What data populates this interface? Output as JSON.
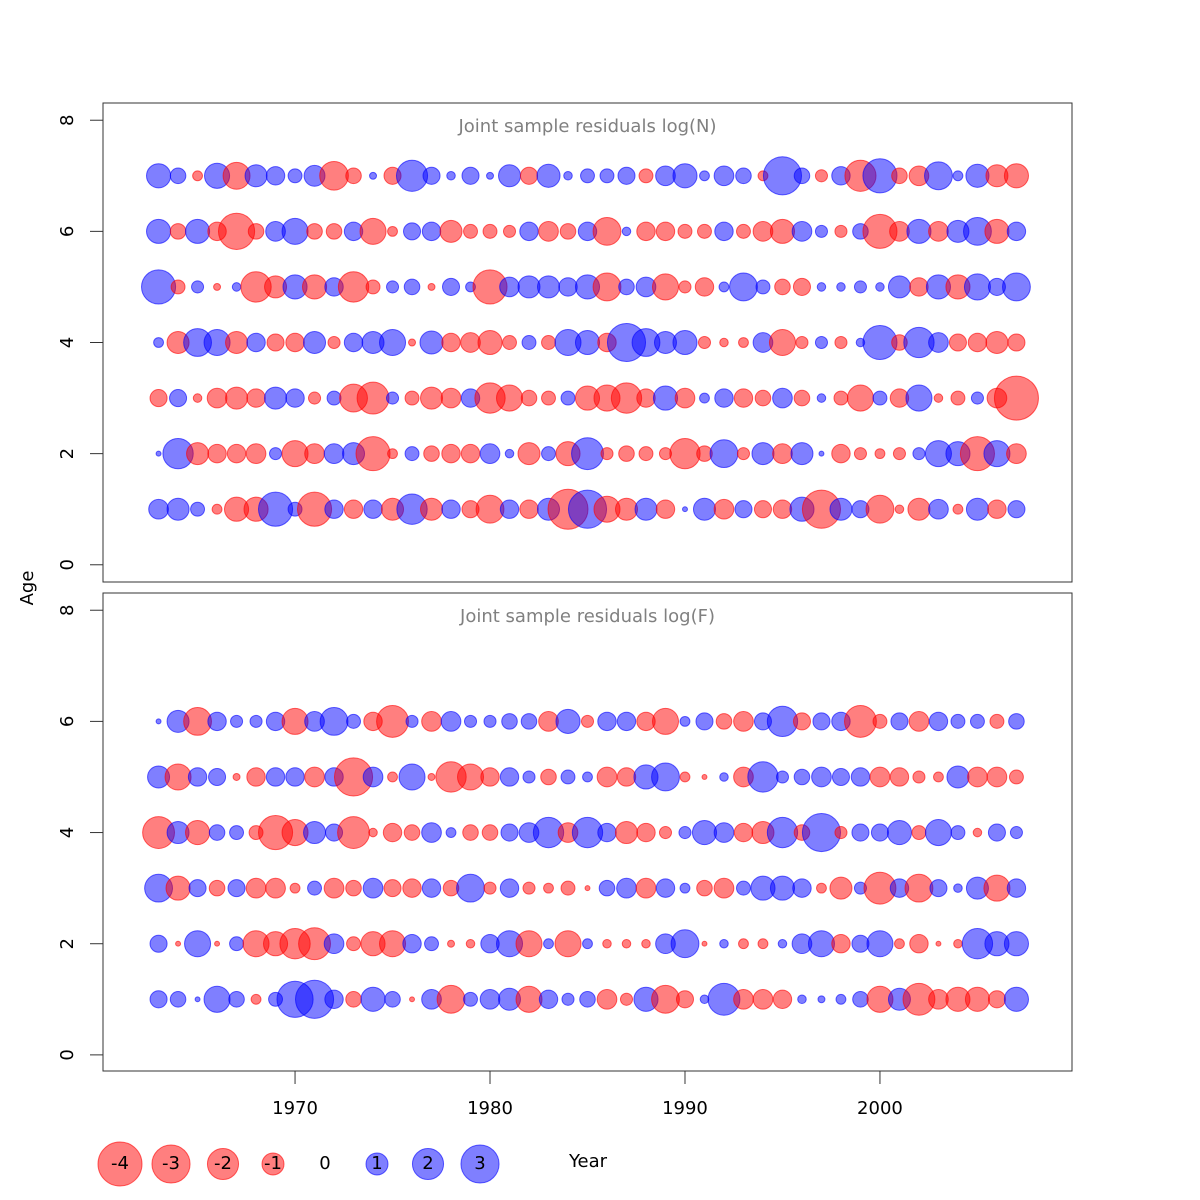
{
  "chart_data": {
    "type": "bubble",
    "xlabel": "Year",
    "ylabel": "Age",
    "colors": {
      "negative": "#ff0000",
      "positive": "#0000ff"
    },
    "x": [
      1963,
      1964,
      1965,
      1966,
      1967,
      1968,
      1969,
      1970,
      1971,
      1972,
      1973,
      1974,
      1975,
      1976,
      1977,
      1978,
      1979,
      1980,
      1981,
      1982,
      1983,
      1984,
      1985,
      1986,
      1987,
      1988,
      1989,
      1990,
      1991,
      1992,
      1993,
      1994,
      1995,
      1996,
      1997,
      1998,
      1999,
      2000,
      2001,
      2002,
      2003,
      2004,
      2005,
      2006,
      2007
    ],
    "xlim": [
      1960.15,
      2009.85
    ],
    "xticks": [
      1970,
      1980,
      1990,
      2000
    ],
    "size_legend": [
      -4,
      -3,
      -2,
      -1,
      0,
      1,
      2,
      3
    ],
    "panels": [
      {
        "title": "Joint sample residuals log(N)",
        "ylim": [
          -0.31,
          8.31
        ],
        "yticks": [
          0,
          2,
          4,
          6,
          8
        ],
        "ages": [
          1,
          2,
          3,
          4,
          5,
          6,
          7
        ],
        "values": [
          [
            0.8,
            1,
            0.4,
            -0.2,
            -1.2,
            -1.2,
            2.4,
            0.4,
            -2.4,
            0.7,
            -0.7,
            0.7,
            -1,
            1.9,
            -1,
            0.7,
            -0.6,
            -1.6,
            0.7,
            -0.7,
            1,
            -3.3,
            3,
            -1.4,
            -1,
            1,
            -0.7,
            0.05,
            1,
            -0.8,
            0.6,
            -0.6,
            -0.7,
            1.2,
            -3,
            1,
            0.6,
            -1.6,
            -0.15,
            -1,
            0.8,
            -0.2,
            1,
            -0.7,
            0.6
          ],
          [
            0.05,
            1.9,
            -1,
            -0.7,
            -0.7,
            -0.8,
            0.3,
            -1.4,
            -0.8,
            0.8,
            1,
            -2.4,
            -0.2,
            0.4,
            -0.5,
            -0.7,
            -0.7,
            0.8,
            0.15,
            -1,
            0.4,
            -1.2,
            2.1,
            -0.3,
            -0.5,
            -0.4,
            -0.3,
            -1.9,
            -0.5,
            1.6,
            -0.3,
            1,
            -0.8,
            1,
            0.05,
            -0.7,
            -0.3,
            -0.2,
            -0.3,
            0.3,
            1.4,
            1.2,
            -2.4,
            1.4,
            -0.8
          ],
          [
            -0.6,
            0.6,
            -0.15,
            -0.8,
            -1,
            -0.7,
            1,
            0.7,
            -0.3,
            0.4,
            -1.6,
            -2.1,
            0.3,
            -0.4,
            -1,
            -0.8,
            0.7,
            -1.9,
            -1.4,
            -0.5,
            -0.4,
            0.4,
            -1.2,
            -1.4,
            -1.9,
            -0.7,
            1.2,
            -0.8,
            0.2,
            0.7,
            -0.7,
            -0.5,
            0.8,
            -0.5,
            0.15,
            -0.4,
            -1.4,
            0.4,
            -0.7,
            1.4,
            -0.15,
            -0.4,
            0.3,
            -0.8,
            -4
          ],
          [
            0.2,
            -1,
            1.6,
            1.4,
            -1,
            0.7,
            -0.6,
            -0.7,
            1,
            -0.3,
            0.7,
            1,
            1.4,
            -0.1,
            1.1,
            -0.7,
            -0.8,
            -1.2,
            -0.4,
            0.4,
            -0.4,
            1.4,
            1.2,
            -0.7,
            3,
            1.6,
            1,
            1.2,
            -0.3,
            -0.15,
            -0.2,
            0.8,
            -1.4,
            -0.3,
            0.3,
            -0.3,
            0.15,
            2.4,
            -0.5,
            1.9,
            0.8,
            -0.6,
            -0.7,
            -1,
            -0.6
          ],
          [
            2.4,
            -0.4,
            0.3,
            -0.1,
            0.15,
            -1.9,
            -1,
            1.2,
            -1.2,
            0.7,
            -1.9,
            -0.4,
            0.3,
            0.5,
            -0.1,
            0.6,
            0.2,
            -2.4,
            0.8,
            1,
            1,
            0.7,
            1.2,
            -1.6,
            0.5,
            0.8,
            -1.4,
            -0.3,
            -0.7,
            0.2,
            1.6,
            0.4,
            -0.5,
            -0.6,
            0.15,
            0.15,
            0.3,
            0.15,
            1,
            -0.7,
            1.2,
            -1.2,
            1.4,
            0.6,
            1.6
          ],
          [
            1.2,
            -0.5,
            1.2,
            -0.7,
            -2.7,
            -0.5,
            0.8,
            1.4,
            -0.5,
            -0.5,
            0.7,
            -1.4,
            -0.2,
            0.6,
            0.7,
            -1,
            -0.4,
            -0.4,
            -0.3,
            0.7,
            -0.8,
            -0.5,
            0.7,
            -1.6,
            0.15,
            -0.7,
            -0.7,
            -0.4,
            -0.4,
            0.7,
            -0.4,
            -0.8,
            -1.2,
            0.8,
            0.3,
            -0.3,
            0.5,
            -2.4,
            -0.8,
            1.2,
            -0.8,
            1,
            1.6,
            -1.2,
            0.7
          ],
          [
            1.2,
            0.5,
            -0.2,
            1.3,
            -1.5,
            1,
            0.7,
            0.4,
            0.9,
            -1.7,
            -0.5,
            0.1,
            -0.6,
            2,
            0.6,
            0.15,
            0.6,
            0.1,
            1,
            -0.6,
            1.1,
            0.15,
            0.4,
            0.4,
            0.6,
            -0.4,
            0.8,
            1.2,
            0.2,
            0.8,
            0.5,
            -0.2,
            3,
            0.5,
            -0.3,
            0.7,
            -2,
            2.4,
            -0.5,
            -0.8,
            1.6,
            0.2,
            1.1,
            -1,
            -1.2
          ]
        ]
      },
      {
        "title": "Joint sample residuals log(F)",
        "ylim": [
          -0.29,
          8.31
        ],
        "yticks": [
          0,
          2,
          4,
          6,
          8
        ],
        "ages": [
          1,
          2,
          3,
          4,
          5,
          6
        ],
        "values": [
          [
            0.6,
            0.5,
            0.05,
            1.4,
            0.5,
            -0.2,
            0.4,
            2.7,
            3,
            0.7,
            -0.5,
            1.2,
            0.5,
            -0.05,
            0.8,
            -1.6,
            0.4,
            0.8,
            1,
            -1.4,
            0.7,
            0.3,
            0.5,
            -0.8,
            -0.3,
            1.2,
            -1.6,
            -0.6,
            0.15,
            2.1,
            -0.8,
            -0.8,
            -0.7,
            0.15,
            0.1,
            0.2,
            0.5,
            -1.4,
            1,
            -2.1,
            -0.8,
            -1.2,
            -1.2,
            -0.6,
            1.2
          ],
          [
            0.6,
            -0.05,
            1.4,
            -0.05,
            0.4,
            -1.4,
            -1.2,
            -1.9,
            -2.1,
            0.8,
            -0.4,
            -1.2,
            -1.4,
            0.7,
            0.4,
            -0.1,
            -0.15,
            0.7,
            1.4,
            -1.4,
            0.2,
            -1.4,
            0.2,
            -0.15,
            -0.15,
            -0.15,
            0.8,
            1.6,
            -0.05,
            0.15,
            -0.2,
            -0.2,
            0.15,
            0.8,
            1.4,
            -0.7,
            0.6,
            1.4,
            -0.2,
            -0.7,
            -0.05,
            -0.15,
            1.9,
            1.2,
            1.2
          ],
          [
            1.6,
            -1.2,
            0.6,
            -0.5,
            0.6,
            -0.8,
            -0.8,
            -0.2,
            0.4,
            -0.8,
            -0.5,
            0.8,
            -0.6,
            -0.7,
            0.7,
            -0.5,
            1.6,
            -0.3,
            0.7,
            -0.3,
            -0.2,
            -0.4,
            -0.05,
            0.5,
            0.8,
            -0.8,
            0.7,
            0.2,
            -0.5,
            -0.8,
            0.4,
            1.2,
            1.2,
            0.7,
            -0.2,
            -1,
            0.3,
            -2.1,
            0.7,
            -1.6,
            0.6,
            0.15,
            1,
            -1.4,
            0.7
          ],
          [
            -2.1,
            1,
            -1.2,
            0.5,
            0.4,
            -0.4,
            -2.4,
            -1.4,
            1,
            0.6,
            -2.1,
            -0.15,
            -0.7,
            -0.5,
            0.8,
            0.2,
            -0.5,
            -0.5,
            0.6,
            0.8,
            1.9,
            -0.8,
            1.9,
            0.7,
            -1,
            -0.7,
            -0.3,
            0.3,
            1.2,
            0.8,
            -0.7,
            -1,
            1.9,
            -0.5,
            3,
            -0.3,
            0.6,
            0.6,
            1.2,
            -0.4,
            1.4,
            0.4,
            -0.15,
            0.6,
            0.3
          ],
          [
            1,
            -1.4,
            0.7,
            0.6,
            -0.1,
            -0.7,
            0.7,
            0.7,
            -0.8,
            0.7,
            -3,
            0.8,
            -0.2,
            1.4,
            -0.1,
            -1.9,
            -1.4,
            -0.7,
            0.7,
            0.3,
            -0.5,
            0.4,
            0.2,
            -0.8,
            -0.7,
            1.2,
            1.6,
            -0.2,
            -0.05,
            0.15,
            -0.8,
            1.9,
            0.3,
            0.5,
            0.8,
            0.6,
            0.7,
            -0.8,
            -0.7,
            -0.3,
            -0.2,
            1,
            -0.8,
            -0.8,
            -0.4
          ],
          [
            0.05,
            1,
            -1.6,
            0.7,
            0.3,
            0.3,
            0.7,
            -1.4,
            0.8,
            1.6,
            0.4,
            -0.7,
            -2.1,
            0.3,
            -0.8,
            0.8,
            0.3,
            0.3,
            0.5,
            0.5,
            -0.8,
            1.2,
            -0.3,
            0.7,
            0.7,
            -0.7,
            -1.4,
            0.2,
            0.6,
            -0.5,
            -0.8,
            0.6,
            1.9,
            -0.6,
            0.6,
            0.7,
            -2.1,
            -0.4,
            0.6,
            -0.8,
            0.7,
            0.4,
            0.4,
            -0.4,
            0.5
          ]
        ]
      }
    ]
  }
}
